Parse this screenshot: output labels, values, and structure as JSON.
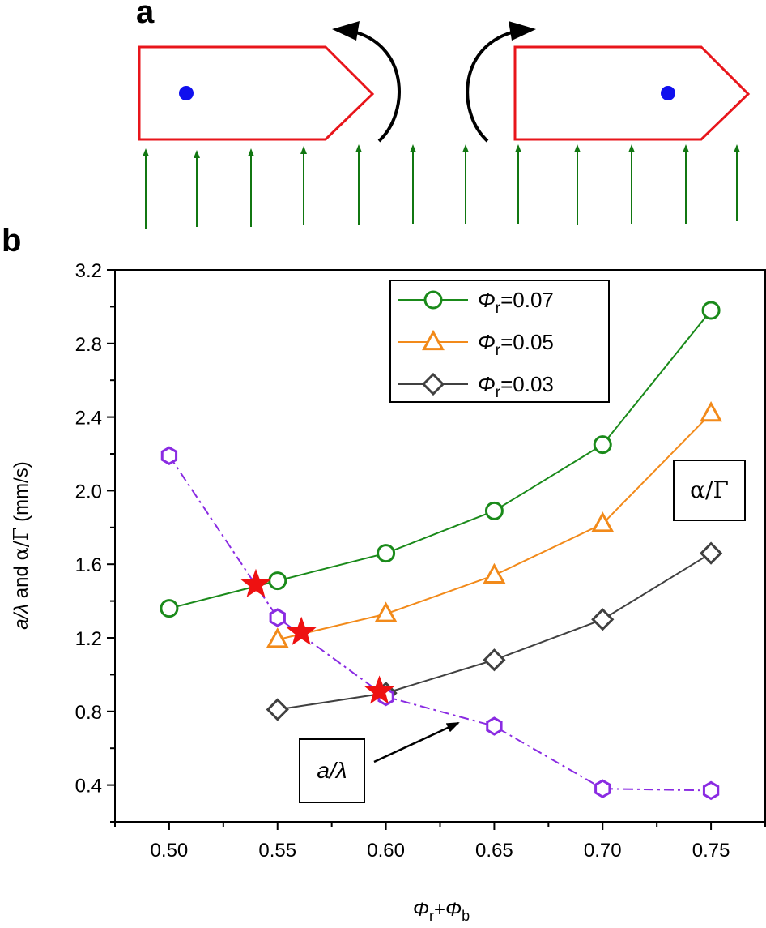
{
  "panels": {
    "a_label": "a",
    "b_label": "b"
  },
  "colors": {
    "shape_outline": "#e8151b",
    "center_dot": "#1010ee",
    "flow_arrows": "#117711",
    "rotation_arrows": "#000000",
    "series_007": "#1a8a1a",
    "series_005": "#f28a1a",
    "series_003": "#404040",
    "series_a_lambda": "#8a2be2",
    "star_marker": "#ee1111"
  },
  "chart_data": {
    "type": "line",
    "xlabel": {
      "sym1": "Φ",
      "sub1": "r",
      "plus": "+",
      "sym2": "Φ",
      "sub2": "b"
    },
    "ylabel": {
      "part1": "a/λ",
      "mid": " and ",
      "part2": "α/Γ",
      "unit": " (mm/s)"
    },
    "xlim": [
      0.475,
      0.775
    ],
    "ylim": [
      0.2,
      3.2
    ],
    "x_ticks": [
      0.5,
      0.55,
      0.6,
      0.65,
      0.7,
      0.75
    ],
    "x_tick_labels": [
      "0.50",
      "0.55",
      "0.60",
      "0.65",
      "0.70",
      "0.75"
    ],
    "y_ticks": [
      0.4,
      0.8,
      1.2,
      1.6,
      2.0,
      2.4,
      2.8,
      3.2
    ],
    "y_tick_labels": [
      "0.4",
      "0.8",
      "1.2",
      "1.6",
      "2.0",
      "2.4",
      "2.8",
      "3.2"
    ],
    "series": [
      {
        "name": "Φr=0.07",
        "sym": "Φ",
        "sub": "r",
        "val": "=0.07",
        "marker": "circle",
        "color_key": "series_007",
        "x": [
          0.5,
          0.55,
          0.6,
          0.65,
          0.7,
          0.75
        ],
        "values": [
          1.36,
          1.51,
          1.66,
          1.89,
          2.25,
          2.98
        ]
      },
      {
        "name": "Φr=0.05",
        "sym": "Φ",
        "sub": "r",
        "val": "=0.05",
        "marker": "triangle",
        "color_key": "series_005",
        "x": [
          0.55,
          0.6,
          0.65,
          0.7,
          0.75
        ],
        "values": [
          1.19,
          1.33,
          1.54,
          1.82,
          2.42
        ]
      },
      {
        "name": "Φr=0.03",
        "sym": "Φ",
        "sub": "r",
        "val": "=0.03",
        "marker": "diamond",
        "color_key": "series_003",
        "x": [
          0.55,
          0.6,
          0.65,
          0.7,
          0.75
        ],
        "values": [
          0.81,
          0.9,
          1.08,
          1.3,
          1.66
        ]
      },
      {
        "name": "a/λ",
        "marker": "hexagon",
        "line": "dashdot",
        "color_key": "series_a_lambda",
        "x": [
          0.5,
          0.55,
          0.6,
          0.65,
          0.7,
          0.75
        ],
        "values": [
          2.19,
          1.31,
          0.88,
          0.72,
          0.38,
          0.37
        ]
      }
    ],
    "intersections": {
      "marker": "star",
      "x": [
        0.54,
        0.561,
        0.597
      ],
      "values": [
        1.49,
        1.23,
        0.91
      ]
    },
    "annotations": {
      "alpha_gamma": "α/Γ",
      "a_lambda": "a/λ"
    },
    "legend_position": "top-right"
  }
}
